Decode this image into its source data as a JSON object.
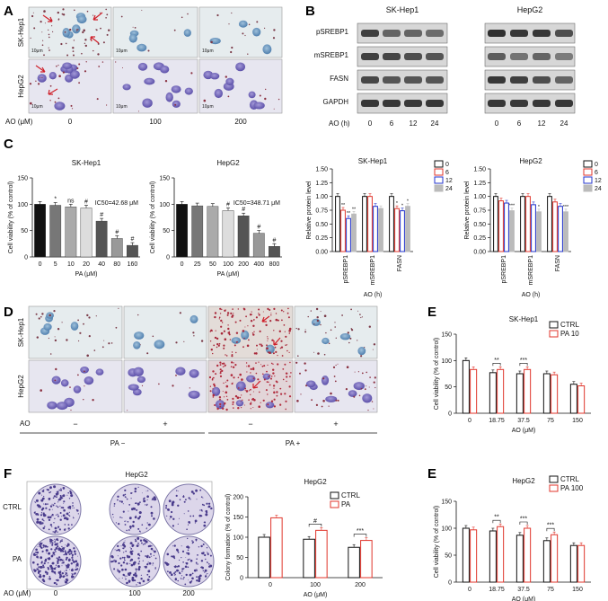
{
  "panel_labels": [
    "A",
    "B",
    "C",
    "D",
    "E",
    "F",
    "E"
  ],
  "panel_A": {
    "rows": [
      "SK-Hep1",
      "HepG2"
    ],
    "x_title": "AO (μM)",
    "x_values": [
      "0",
      "100",
      "200"
    ],
    "scale_bar": "10μm"
  },
  "panel_B": {
    "groups": [
      "SK-Hep1",
      "HepG2"
    ],
    "rows": [
      "pSREBP1",
      "mSREBP1",
      "FASN",
      "GAPDH"
    ],
    "x_title": "AO (h)",
    "x_values": [
      "0",
      "6",
      "12",
      "24",
      "0",
      "6",
      "12",
      "24"
    ]
  },
  "panel_D": {
    "rows": [
      "SK-Hep1",
      "HepG2"
    ],
    "ao_label": "AO",
    "ao_signs": [
      "−",
      "+",
      "−",
      "+"
    ],
    "pa_groups": [
      "PA −",
      "PA +"
    ],
    "scale_bar": "10μm"
  },
  "panel_F_images": {
    "rows": [
      "CTRL",
      "PA"
    ],
    "title": "HepG2",
    "x_title": "AO (μM)",
    "x_values": [
      "0",
      "100",
      "200"
    ]
  },
  "colors": {
    "ctrl": "#111111",
    "pa": "#e0352b",
    "t0": "#111111",
    "t6": "#e0352b",
    "t12": "#2233cc",
    "t24": "#bbbbbb"
  },
  "chart_data": [
    {
      "id": "C1",
      "type": "bar",
      "title": "SK-Hep1",
      "ylabel": "Cell viability (% of control)",
      "xlabel": "PA (μM)",
      "ylim": [
        0,
        150
      ],
      "yticks": [
        0,
        50,
        100,
        150
      ],
      "categories": [
        "0",
        "5",
        "10",
        "20",
        "40",
        "80",
        "160"
      ],
      "values": [
        100,
        98,
        95,
        93,
        68,
        35,
        22
      ],
      "bar_colors": [
        "#111111",
        "#777777",
        "#aaaaaa",
        "#dddddd",
        "#555555",
        "#999999",
        "#555555"
      ],
      "marks": [
        "",
        "*",
        "ns",
        "#",
        "#",
        "#",
        "#"
      ],
      "annotation": "IC50=42.68 μM"
    },
    {
      "id": "C2",
      "type": "bar",
      "title": "HepG2",
      "ylabel": "Cell viability (% of control)",
      "xlabel": "PA (μM)",
      "ylim": [
        0,
        150
      ],
      "yticks": [
        0,
        50,
        100,
        150
      ],
      "categories": [
        "0",
        "25",
        "50",
        "100",
        "200",
        "400",
        "800"
      ],
      "values": [
        100,
        97,
        96,
        88,
        78,
        45,
        20
      ],
      "bar_colors": [
        "#111111",
        "#777777",
        "#aaaaaa",
        "#dddddd",
        "#555555",
        "#999999",
        "#555555"
      ],
      "marks": [
        "",
        "",
        "",
        "#",
        "#",
        "#",
        "#"
      ],
      "annotation": "IC50=348.71 μM"
    },
    {
      "id": "C3",
      "type": "bar",
      "title": "SK-Hep1",
      "ylabel": "Relative protein level",
      "xlabel": "AO (h)",
      "ylim": [
        0,
        1.5
      ],
      "yticks": [
        0,
        0.25,
        0.5,
        0.75,
        1.0,
        1.25,
        1.5
      ],
      "categories": [
        "pSREBP1",
        "mSREBP1",
        "FASN"
      ],
      "series": [
        {
          "name": "0",
          "values": [
            1.0,
            1.0,
            1.0
          ]
        },
        {
          "name": "6",
          "values": [
            0.75,
            1.0,
            0.78
          ]
        },
        {
          "name": "12",
          "values": [
            0.6,
            0.82,
            0.74
          ]
        },
        {
          "name": "24",
          "values": [
            0.68,
            0.78,
            0.82
          ]
        }
      ],
      "marks": [
        [
          "",
          "**",
          "**",
          "**"
        ],
        [
          "",
          "",
          "",
          ""
        ],
        [
          "",
          "*",
          "*",
          "*"
        ]
      ]
    },
    {
      "id": "C4",
      "type": "bar",
      "title": "HepG2",
      "ylabel": "Relative protein level",
      "xlabel": "AO (h)",
      "ylim": [
        0,
        1.5
      ],
      "yticks": [
        0,
        0.25,
        0.5,
        0.75,
        1.0,
        1.25,
        1.5
      ],
      "categories": [
        "pSREBP1",
        "mSREBP1",
        "FASN"
      ],
      "series": [
        {
          "name": "0",
          "values": [
            1.0,
            1.0,
            1.0
          ]
        },
        {
          "name": "6",
          "values": [
            0.92,
            1.0,
            0.9
          ]
        },
        {
          "name": "12",
          "values": [
            0.88,
            0.85,
            0.82
          ]
        },
        {
          "name": "24",
          "values": [
            0.74,
            0.72,
            0.72
          ]
        }
      ],
      "marks": [
        [
          "",
          "",
          "",
          "***"
        ],
        [
          "",
          "",
          "",
          "*"
        ],
        [
          "",
          "",
          "",
          "***"
        ]
      ]
    },
    {
      "id": "E1",
      "type": "bar",
      "title": "SK-Hep1",
      "ylabel": "Cell viability (% of control)",
      "xlabel": "AO (μM)",
      "ylim": [
        0,
        150
      ],
      "yticks": [
        0,
        50,
        100,
        150
      ],
      "categories": [
        "0",
        "18.75",
        "37.5",
        "75",
        "150"
      ],
      "series": [
        {
          "name": "CTRL",
          "values": [
            100,
            77,
            75,
            75,
            55
          ]
        },
        {
          "name": "PA 10",
          "values": [
            83,
            83,
            83,
            73,
            52
          ]
        }
      ],
      "sig": [
        "",
        "**",
        "***",
        "",
        ""
      ]
    },
    {
      "id": "E2",
      "type": "bar",
      "title": "HepG2",
      "ylabel": "Cell viability (% of control)",
      "xlabel": "AO (μM)",
      "ylim": [
        0,
        150
      ],
      "yticks": [
        0,
        50,
        100,
        150
      ],
      "categories": [
        "0",
        "18.75",
        "37.5",
        "75",
        "150"
      ],
      "series": [
        {
          "name": "CTRL",
          "values": [
            100,
            95,
            87,
            77,
            68
          ]
        },
        {
          "name": "PA 100",
          "values": [
            97,
            103,
            100,
            88,
            68
          ]
        }
      ],
      "sig": [
        "",
        "**",
        "***",
        "***",
        ""
      ]
    },
    {
      "id": "F1",
      "type": "bar",
      "title": "HepG2",
      "ylabel": "Colony formation (% of control)",
      "xlabel": "AO (μM)",
      "ylim": [
        0,
        200
      ],
      "yticks": [
        0,
        50,
        100,
        150,
        200
      ],
      "categories": [
        "0",
        "100",
        "200"
      ],
      "series": [
        {
          "name": "CTRL",
          "values": [
            100,
            95,
            75
          ]
        },
        {
          "name": "PA",
          "values": [
            148,
            117,
            92
          ]
        }
      ],
      "sig": [
        "",
        "#",
        "***"
      ]
    }
  ]
}
